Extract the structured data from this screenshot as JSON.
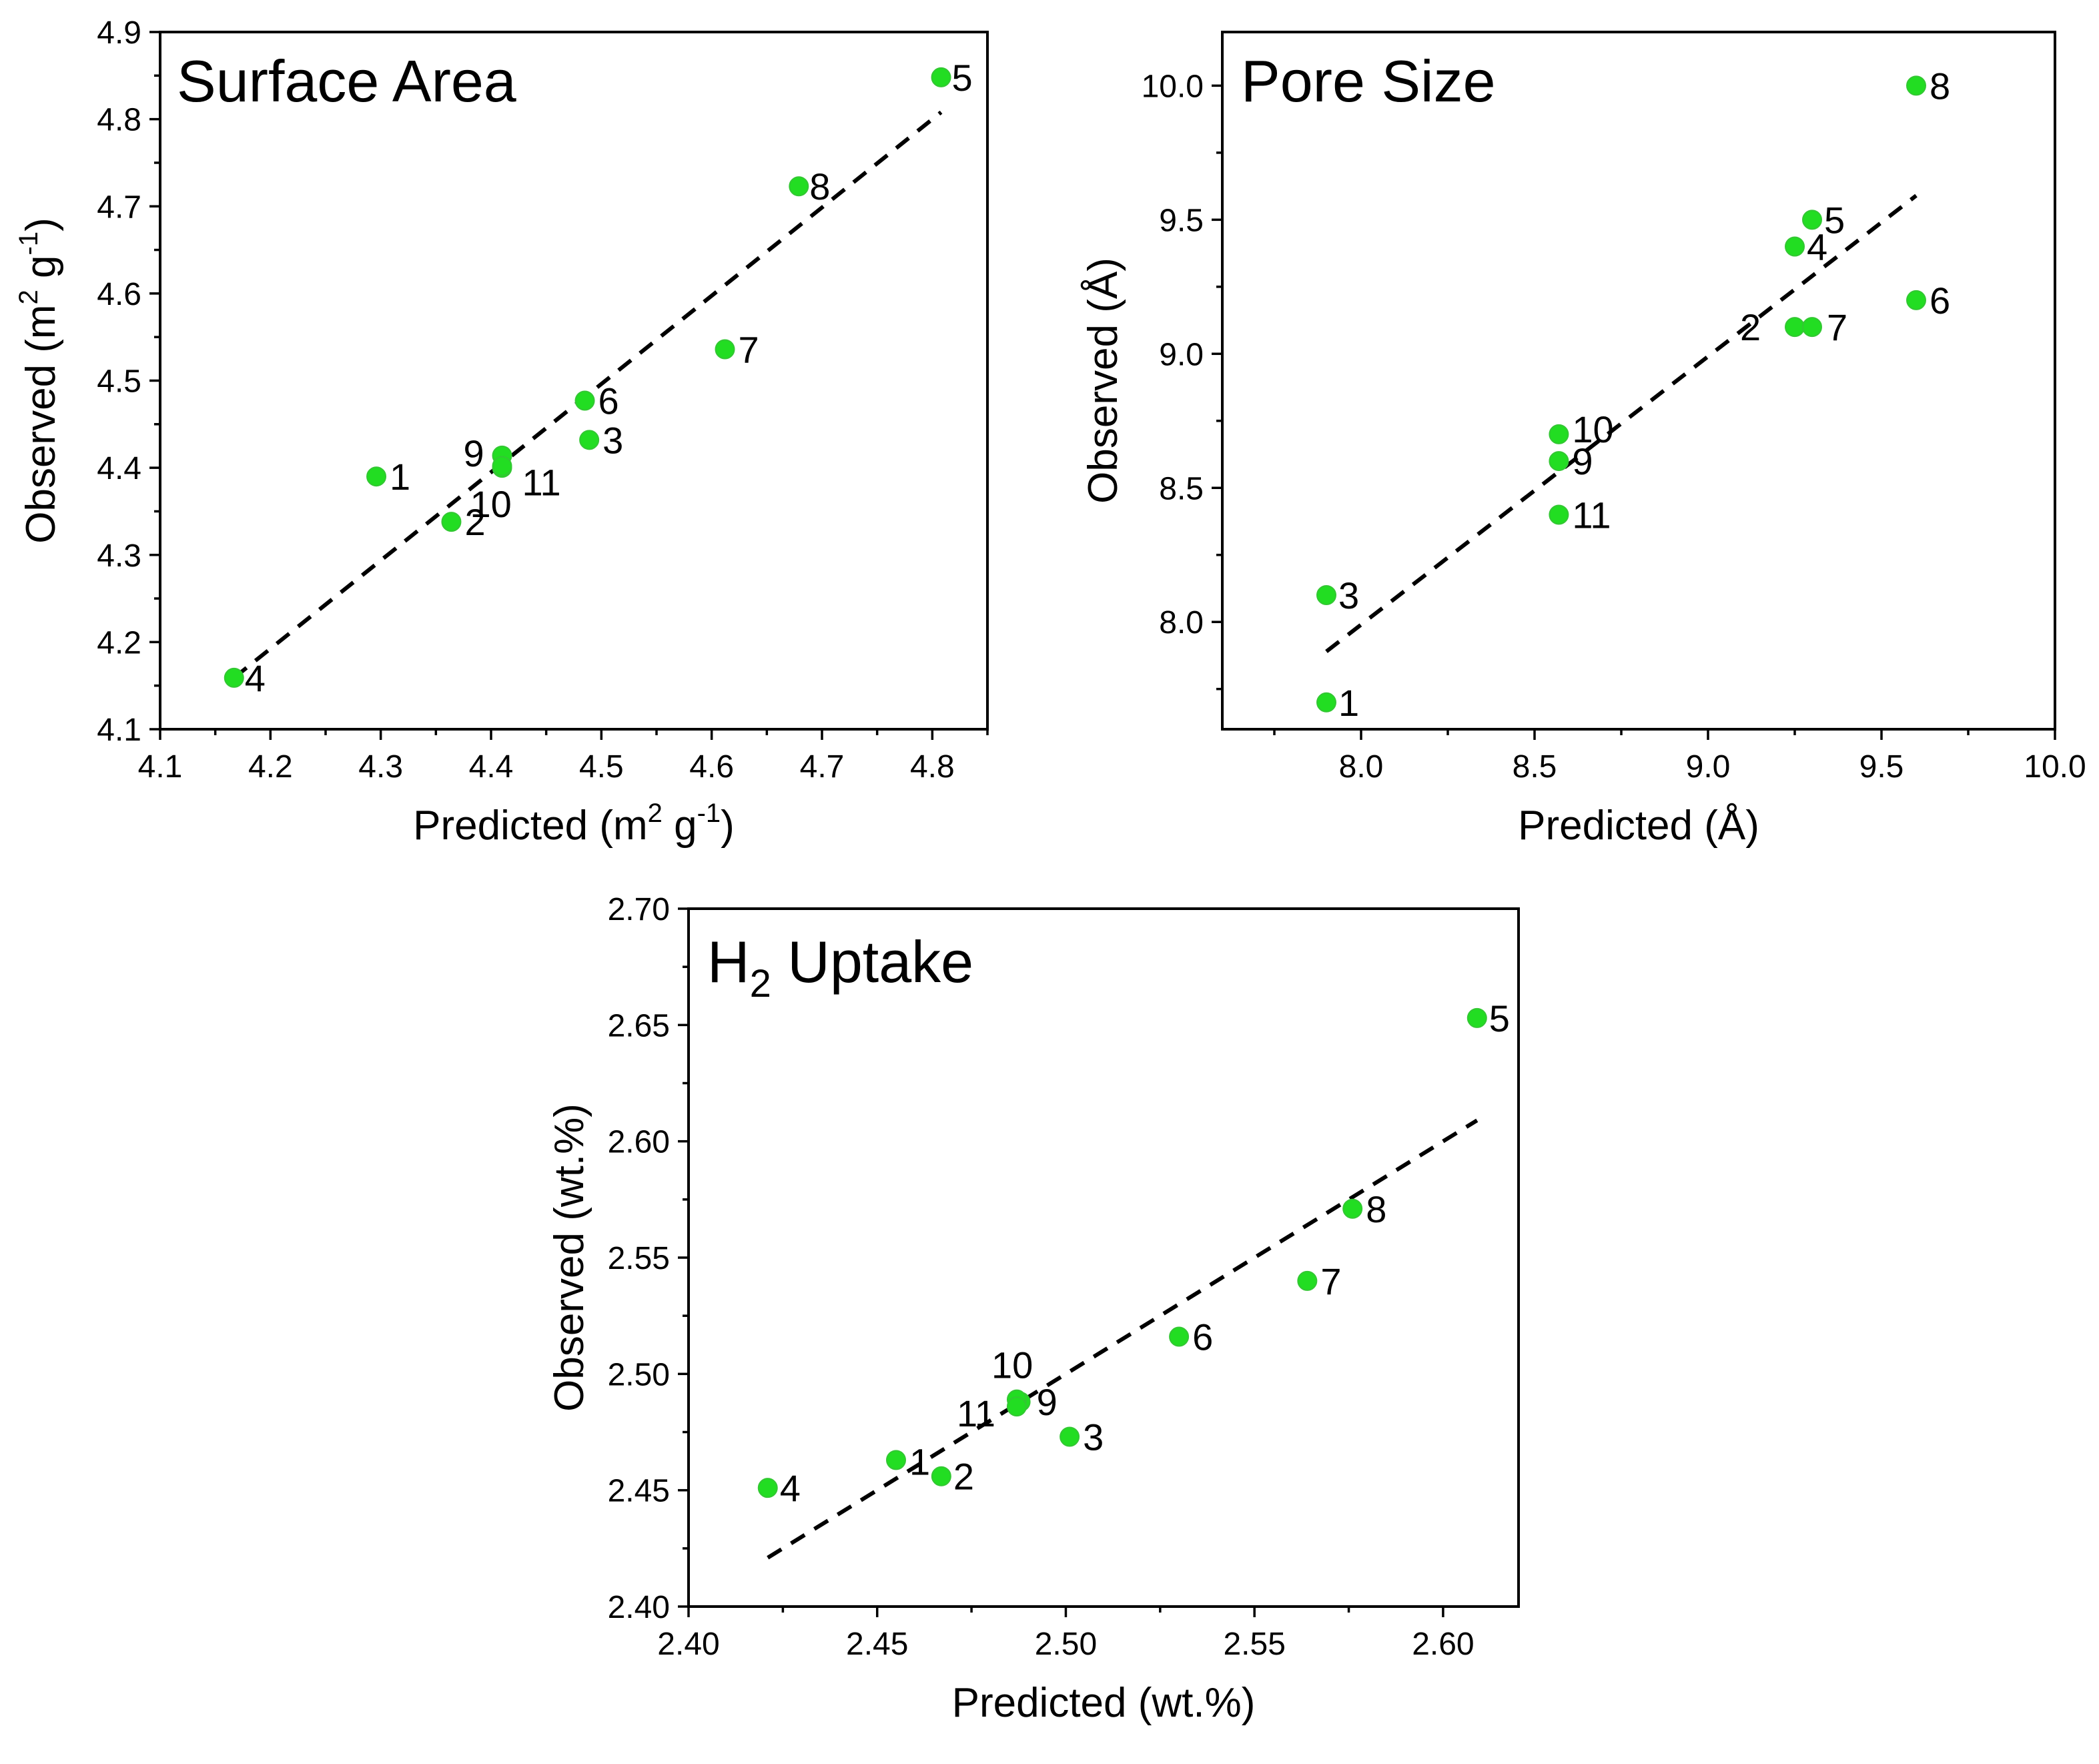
{
  "chart_data": [
    {
      "type": "scatter",
      "title": "Surface Area",
      "xlabel": "Predicted (m2 g-1)",
      "xlabel_parts": {
        "base": "Predicted (m",
        "sup1": "2",
        "mid": " g",
        "sup2": "-1",
        "end": ")"
      },
      "ylabel": "Observed (m2 g-1)",
      "ylabel_parts": {
        "base": "Observed (m",
        "sup1": "2",
        "mid": " g",
        "sup2": "-1",
        "end": ")"
      },
      "xlim": [
        4.1,
        4.85
      ],
      "ylim": [
        4.1,
        4.9
      ],
      "xticks": [
        "4.1",
        "4.2",
        "4.3",
        "4.4",
        "4.5",
        "4.6",
        "4.7",
        "4.8"
      ],
      "yticks": [
        "4.1",
        "4.2",
        "4.3",
        "4.4",
        "4.5",
        "4.6",
        "4.7",
        "4.8",
        "4.9"
      ],
      "points": [
        {
          "label": "1",
          "x": 4.296,
          "y": 4.39
        },
        {
          "label": "2",
          "x": 4.364,
          "y": 4.338
        },
        {
          "label": "3",
          "x": 4.489,
          "y": 4.432
        },
        {
          "label": "4",
          "x": 4.167,
          "y": 4.159
        },
        {
          "label": "5",
          "x": 4.808,
          "y": 4.848
        },
        {
          "label": "6",
          "x": 4.485,
          "y": 4.477
        },
        {
          "label": "7",
          "x": 4.612,
          "y": 4.536
        },
        {
          "label": "8",
          "x": 4.679,
          "y": 4.723
        },
        {
          "label": "9",
          "x": 4.41,
          "y": 4.414
        },
        {
          "label": "10",
          "x": 4.41,
          "y": 4.4
        },
        {
          "label": "11",
          "x": 4.41,
          "y": 4.402
        }
      ],
      "fit_line": [
        [
          4.167,
          4.159
        ],
        [
          4.808,
          4.808
        ]
      ],
      "color": "#22dd22"
    },
    {
      "type": "scatter",
      "title": "Pore Size",
      "xlabel": "Predicted (Å)",
      "ylabel": "Observed (Å)",
      "xlim": [
        7.6,
        10.0
      ],
      "ylim": [
        7.6,
        10.2
      ],
      "xticks": [
        "8.0",
        "8.5",
        "9.0",
        "9.5",
        "10.0"
      ],
      "yticks": [
        "8.0",
        "8.5",
        "9.0",
        "9.5",
        "10.0"
      ],
      "points": [
        {
          "label": "1",
          "x": 7.9,
          "y": 7.7
        },
        {
          "label": "2",
          "x": 9.25,
          "y": 9.1
        },
        {
          "label": "3",
          "x": 7.9,
          "y": 8.1
        },
        {
          "label": "4",
          "x": 9.25,
          "y": 9.4
        },
        {
          "label": "5",
          "x": 9.3,
          "y": 9.5
        },
        {
          "label": "6",
          "x": 9.6,
          "y": 9.2
        },
        {
          "label": "7",
          "x": 9.3,
          "y": 9.1
        },
        {
          "label": "8",
          "x": 9.6,
          "y": 10.0
        },
        {
          "label": "9",
          "x": 8.57,
          "y": 8.6
        },
        {
          "label": "10",
          "x": 8.57,
          "y": 8.7
        },
        {
          "label": "11",
          "x": 8.57,
          "y": 8.4
        }
      ],
      "fit_line": [
        [
          7.9,
          7.89
        ],
        [
          9.6,
          9.59
        ]
      ],
      "color": "#22dd22"
    },
    {
      "type": "scatter",
      "title": "H2 Uptake",
      "title_parts": {
        "base": "H",
        "sub": "2",
        "end": " Uptake"
      },
      "xlabel": "Predicted (wt.%)",
      "ylabel": "Observed (wt.%)",
      "xlim": [
        2.4,
        2.62
      ],
      "ylim": [
        2.4,
        2.7
      ],
      "xticks": [
        "2.40",
        "2.45",
        "2.50",
        "2.55",
        "2.60"
      ],
      "yticks": [
        "2.40",
        "2.45",
        "2.50",
        "2.55",
        "2.60",
        "2.65",
        "2.70"
      ],
      "points": [
        {
          "label": "1",
          "x": 2.455,
          "y": 2.463
        },
        {
          "label": "2",
          "x": 2.467,
          "y": 2.456
        },
        {
          "label": "3",
          "x": 2.501,
          "y": 2.473
        },
        {
          "label": "4",
          "x": 2.421,
          "y": 2.451
        },
        {
          "label": "5",
          "x": 2.609,
          "y": 2.653
        },
        {
          "label": "6",
          "x": 2.53,
          "y": 2.516
        },
        {
          "label": "7",
          "x": 2.564,
          "y": 2.54
        },
        {
          "label": "8",
          "x": 2.576,
          "y": 2.571
        },
        {
          "label": "9",
          "x": 2.488,
          "y": 2.488
        },
        {
          "label": "10",
          "x": 2.487,
          "y": 2.489
        },
        {
          "label": "11",
          "x": 2.487,
          "y": 2.486
        }
      ],
      "fit_line": [
        [
          2.421,
          2.421
        ],
        [
          2.609,
          2.609
        ]
      ],
      "color": "#22dd22"
    }
  ]
}
